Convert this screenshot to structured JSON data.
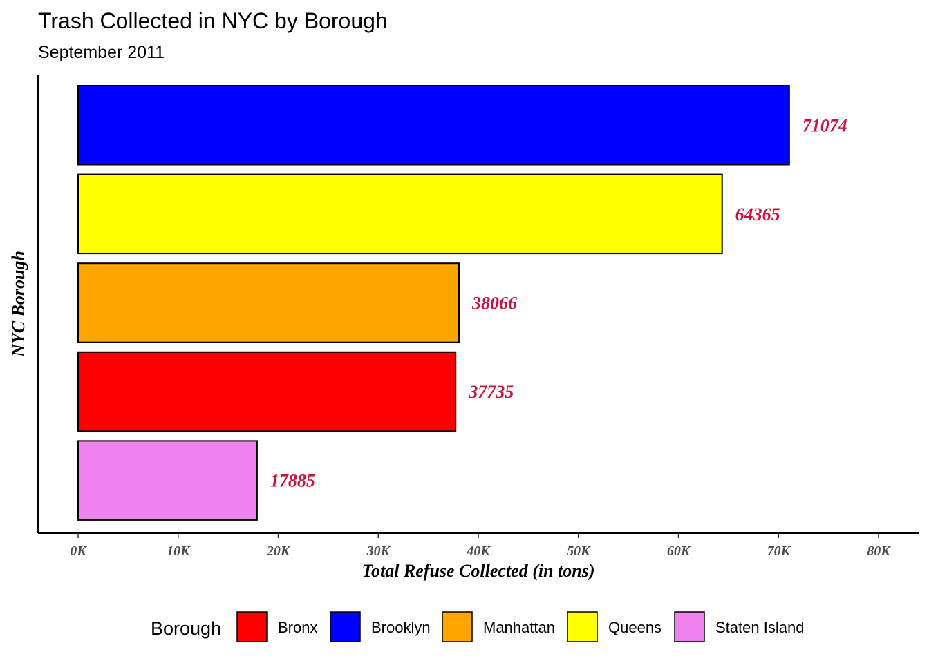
{
  "chart_data": {
    "type": "bar",
    "orientation": "horizontal",
    "title": "Trash Collected in NYC by Borough",
    "subtitle": "September 2011",
    "xlabel": "Total Refuse Collected (in tons)",
    "ylabel": "NYC Borough",
    "xlim": [
      0,
      80000
    ],
    "x_ticks": [
      0,
      10000,
      20000,
      30000,
      40000,
      50000,
      60000,
      70000,
      80000
    ],
    "x_tick_labels": [
      "0K",
      "10K",
      "20K",
      "30K",
      "40K",
      "50K",
      "60K",
      "70K",
      "80K"
    ],
    "grid": false,
    "bars": [
      {
        "category": "Brooklyn",
        "value": 71074,
        "color": "#0000FF"
      },
      {
        "category": "Queens",
        "value": 64365,
        "color": "#FFFF00"
      },
      {
        "category": "Manhattan",
        "value": 38066,
        "color": "#FFA500"
      },
      {
        "category": "Bronx",
        "value": 37735,
        "color": "#FF0000"
      },
      {
        "category": "Staten Island",
        "value": 17885,
        "color": "#EE82EE"
      }
    ],
    "data_labels": [
      "71074",
      "64365",
      "38066",
      "37735",
      "17885"
    ],
    "data_label_color": "#C8143C",
    "legend": {
      "title": "Borough",
      "position": "bottom",
      "entries": [
        {
          "label": "Bronx",
          "color": "#FF0000"
        },
        {
          "label": "Brooklyn",
          "color": "#0000FF"
        },
        {
          "label": "Manhattan",
          "color": "#FFA500"
        },
        {
          "label": "Queens",
          "color": "#FFFF00"
        },
        {
          "label": "Staten Island",
          "color": "#EE82EE"
        }
      ]
    }
  }
}
